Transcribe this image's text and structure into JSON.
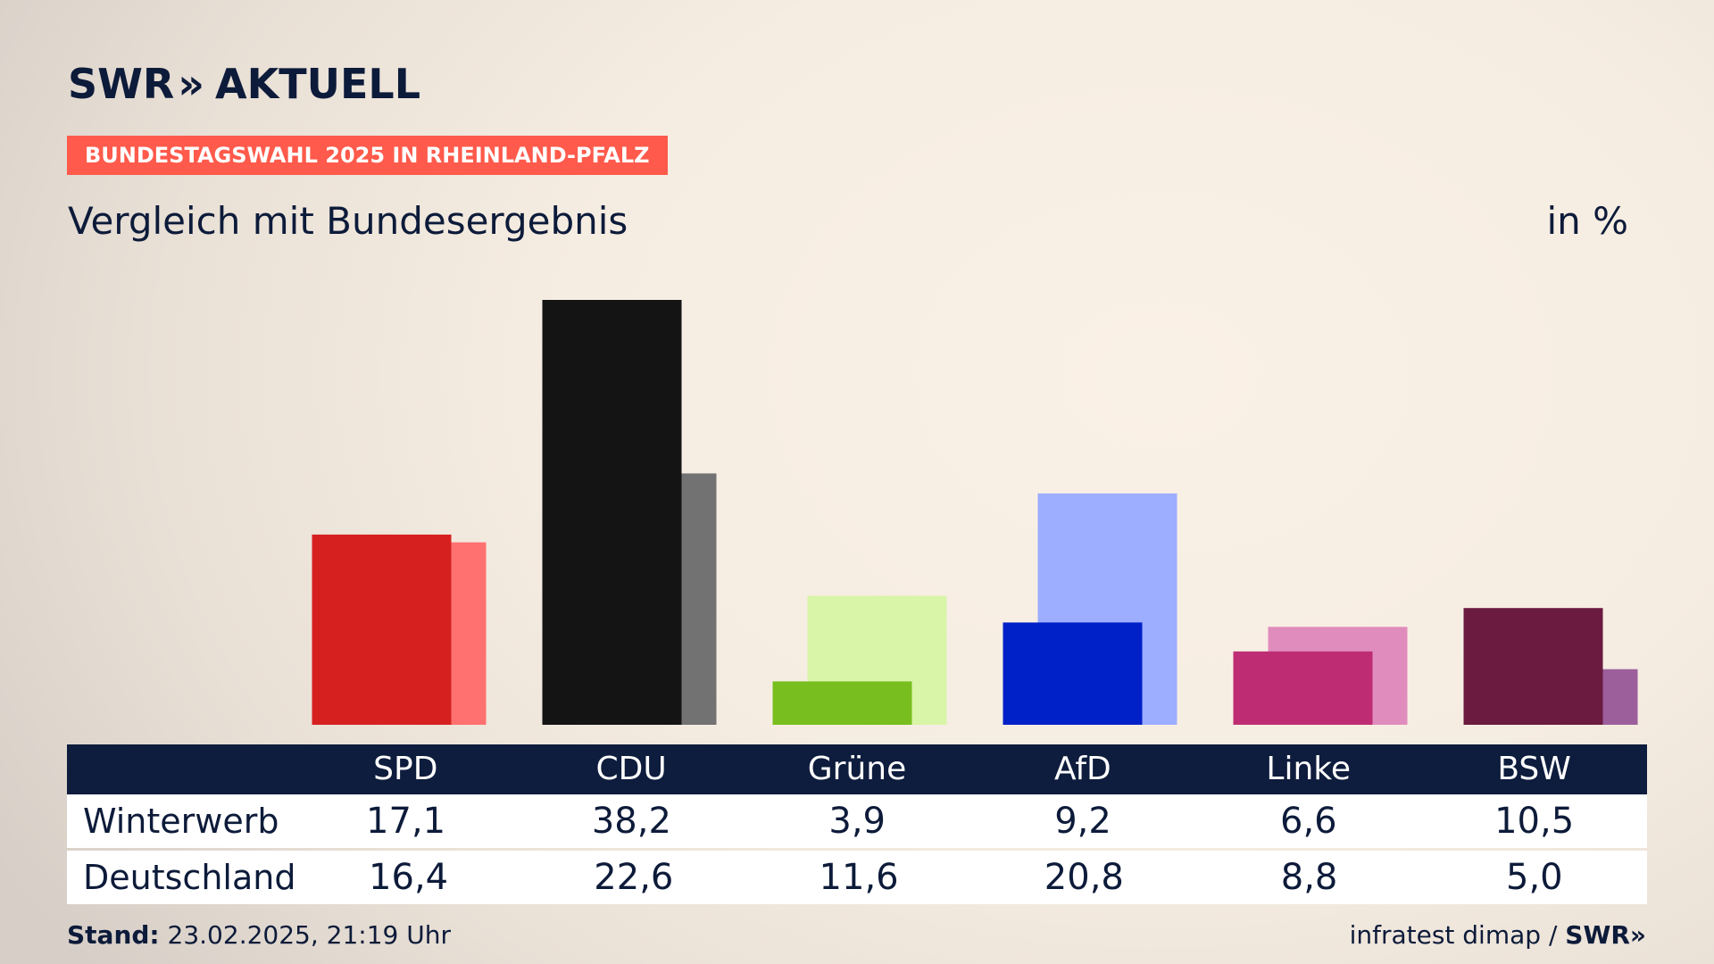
{
  "brand": {
    "name": "SWR",
    "chevrons": "»",
    "product": "AKTUELL"
  },
  "tag": "BUNDESTAGSWAHL 2025 IN RHEINLAND-PFALZ",
  "subtitle": "Vergleich mit Bundesergebnis",
  "unit": "in %",
  "colors": {
    "SPD": [
      "#d62020",
      "#ff7070"
    ],
    "CDU": [
      "#141414",
      "#727272"
    ],
    "Grüne": [
      "#78be1e",
      "#d8f5a8"
    ],
    "AfD": [
      "#0020c8",
      "#9dadff"
    ],
    "Linke": [
      "#be2d73",
      "#e08cbc"
    ],
    "BSW": [
      "#6b1a40",
      "#9c5f9c"
    ]
  },
  "chart_data": {
    "type": "bar",
    "categories": [
      "SPD",
      "CDU",
      "Grüne",
      "AfD",
      "Linke",
      "BSW"
    ],
    "series": [
      {
        "name": "Winterwerb",
        "values": [
          17.1,
          38.2,
          3.9,
          9.2,
          6.6,
          10.5
        ]
      },
      {
        "name": "Deutschland",
        "values": [
          16.4,
          22.6,
          11.6,
          20.8,
          8.8,
          5.0
        ]
      }
    ],
    "value_labels": [
      [
        "17,1",
        "38,2",
        "3,9",
        "9,2",
        "6,6",
        "10,5"
      ],
      [
        "16,4",
        "22,6",
        "11,6",
        "20,8",
        "8,8",
        "5,0"
      ]
    ],
    "ylim": [
      0,
      38.2
    ]
  },
  "footer": {
    "stand_label": "Stand:",
    "stand_value": "23.02.2025, 21:19 Uhr",
    "source": "infratest dimap /",
    "source_logo": "SWR»"
  }
}
